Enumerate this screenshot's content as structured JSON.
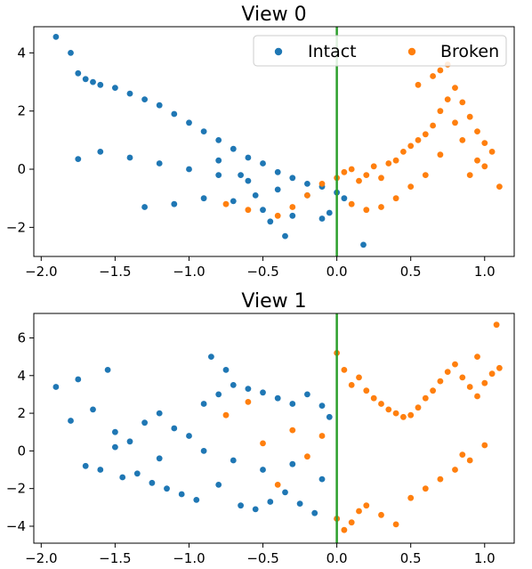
{
  "colors": {
    "intact": "#1f77b4",
    "broken": "#ff7f0e",
    "divider": "#2ca02c"
  },
  "chart_data": [
    {
      "type": "scatter",
      "title": "View 0",
      "xlim": [
        -2.05,
        1.2
      ],
      "ylim": [
        -3.0,
        4.9
      ],
      "xticks": [
        -2.0,
        -1.5,
        -1.0,
        -0.5,
        0.0,
        0.5,
        1.0
      ],
      "yticks": [
        -2,
        0,
        2,
        4
      ],
      "vline_x": 0.0,
      "legend": {
        "position": "top-right",
        "entries": [
          "Intact",
          "Broken"
        ]
      },
      "series": [
        {
          "name": "Intact",
          "color": "#1f77b4",
          "x": [
            -1.9,
            -1.8,
            -1.75,
            -1.7,
            -1.65,
            -1.6,
            -1.5,
            -1.4,
            -1.3,
            -1.2,
            -1.1,
            -1.0,
            -0.9,
            -0.8,
            -0.7,
            -0.6,
            -0.5,
            -0.4,
            -0.3,
            -0.2,
            -0.1,
            -1.75,
            -1.6,
            -1.4,
            -1.2,
            -1.0,
            -0.8,
            -0.6,
            -0.4,
            -0.2,
            -1.3,
            -1.1,
            -0.9,
            -0.7,
            -0.5,
            -0.3,
            -0.1,
            -0.05,
            0.0,
            0.05,
            0.18,
            -0.8,
            -0.65,
            -0.55,
            -0.45,
            -0.35
          ],
          "y": [
            4.55,
            4.0,
            3.3,
            3.1,
            3.0,
            2.9,
            2.8,
            2.6,
            2.4,
            2.2,
            1.9,
            1.6,
            1.3,
            1.0,
            0.7,
            0.4,
            0.2,
            -0.1,
            -0.3,
            -0.5,
            -0.6,
            0.35,
            0.6,
            0.4,
            0.2,
            0.0,
            -0.2,
            -0.4,
            -0.7,
            -0.9,
            -1.3,
            -1.2,
            -1.0,
            -1.1,
            -1.4,
            -1.6,
            -1.7,
            -1.5,
            -0.8,
            -1.0,
            -2.6,
            0.3,
            -0.2,
            -0.9,
            -1.8,
            -2.3
          ]
        },
        {
          "name": "Broken",
          "color": "#ff7f0e",
          "x": [
            0.0,
            0.05,
            0.1,
            0.15,
            0.2,
            0.25,
            0.3,
            0.35,
            0.4,
            0.45,
            0.5,
            0.55,
            0.6,
            0.65,
            0.7,
            0.75,
            0.8,
            0.85,
            0.9,
            0.95,
            1.0,
            1.05,
            0.5,
            0.6,
            0.7,
            0.8,
            0.65,
            0.75,
            0.4,
            0.3,
            0.2,
            0.1,
            -0.1,
            -0.2,
            -0.3,
            -0.4,
            -0.6,
            -0.75,
            0.9,
            1.0,
            0.55,
            0.7,
            0.85,
            0.95,
            1.1
          ],
          "y": [
            -0.3,
            -0.1,
            0.0,
            -0.4,
            -0.2,
            0.1,
            -0.3,
            0.2,
            0.3,
            0.6,
            0.8,
            1.0,
            1.2,
            1.5,
            2.0,
            2.4,
            2.8,
            2.3,
            1.8,
            1.3,
            0.9,
            0.6,
            -0.6,
            -0.2,
            0.5,
            1.6,
            3.2,
            3.6,
            -1.0,
            -1.3,
            -1.4,
            -1.2,
            -0.5,
            -0.9,
            -1.3,
            -1.6,
            -1.4,
            -1.2,
            -0.2,
            0.1,
            2.9,
            3.4,
            1.0,
            0.3,
            -0.6
          ]
        }
      ]
    },
    {
      "type": "scatter",
      "title": "View 1",
      "xlim": [
        -2.05,
        1.2
      ],
      "ylim": [
        -4.9,
        7.3
      ],
      "xticks": [
        -2.0,
        -1.5,
        -1.0,
        -0.5,
        0.0,
        0.5,
        1.0
      ],
      "yticks": [
        -4,
        -2,
        0,
        2,
        4,
        6
      ],
      "vline_x": 0.0,
      "series": [
        {
          "name": "Intact",
          "color": "#1f77b4",
          "x": [
            -1.9,
            -1.8,
            -1.75,
            -1.7,
            -1.65,
            -1.55,
            -1.5,
            -1.4,
            -1.3,
            -1.2,
            -1.1,
            -1.0,
            -0.9,
            -0.85,
            -0.8,
            -0.75,
            -0.7,
            -0.6,
            -0.5,
            -0.4,
            -0.3,
            -0.2,
            -0.1,
            -0.05,
            -1.6,
            -1.45,
            -1.35,
            -1.25,
            -1.15,
            -1.05,
            -0.95,
            -0.65,
            -0.55,
            -0.45,
            -0.35,
            -0.25,
            -0.15,
            -0.9,
            -0.7,
            -0.5,
            -0.3,
            -0.1,
            0.0,
            -1.5,
            -1.2,
            -0.8
          ],
          "y": [
            3.4,
            1.6,
            3.8,
            -0.8,
            2.2,
            4.3,
            1.0,
            0.5,
            1.5,
            2.0,
            1.2,
            0.8,
            2.5,
            5.0,
            3.0,
            4.3,
            3.5,
            3.3,
            3.1,
            2.8,
            2.5,
            3.0,
            2.4,
            1.8,
            -1.0,
            -1.4,
            -1.2,
            -1.7,
            -2.0,
            -2.3,
            -2.6,
            -2.9,
            -3.1,
            -2.7,
            -2.2,
            -2.8,
            -3.3,
            0.0,
            -0.5,
            -1.0,
            -0.7,
            -1.5,
            -3.6,
            0.2,
            -0.4,
            -1.8
          ]
        },
        {
          "name": "Broken",
          "color": "#ff7f0e",
          "x": [
            0.0,
            0.05,
            0.1,
            0.15,
            0.2,
            0.25,
            0.3,
            0.35,
            0.4,
            0.45,
            0.5,
            0.55,
            0.6,
            0.65,
            0.7,
            0.75,
            0.8,
            0.85,
            0.9,
            0.95,
            1.0,
            1.05,
            1.1,
            0.0,
            0.05,
            0.1,
            0.15,
            0.2,
            0.3,
            0.4,
            0.5,
            0.6,
            0.7,
            0.8,
            0.9,
            1.0,
            -0.1,
            -0.2,
            -0.3,
            -0.4,
            -0.5,
            -0.6,
            -0.75,
            1.08,
            0.95,
            0.85
          ],
          "y": [
            5.2,
            4.3,
            3.5,
            3.9,
            3.2,
            2.8,
            2.5,
            2.2,
            2.0,
            1.8,
            1.9,
            2.3,
            2.8,
            3.2,
            3.7,
            4.2,
            4.6,
            3.9,
            3.4,
            2.9,
            3.6,
            4.1,
            4.4,
            -3.6,
            -4.2,
            -3.8,
            -3.2,
            -2.9,
            -3.4,
            -3.9,
            -2.5,
            -2.0,
            -1.5,
            -1.0,
            -0.5,
            0.3,
            0.8,
            -0.3,
            1.1,
            -1.8,
            0.4,
            2.6,
            1.9,
            6.7,
            5.0,
            -0.2
          ]
        }
      ]
    }
  ]
}
